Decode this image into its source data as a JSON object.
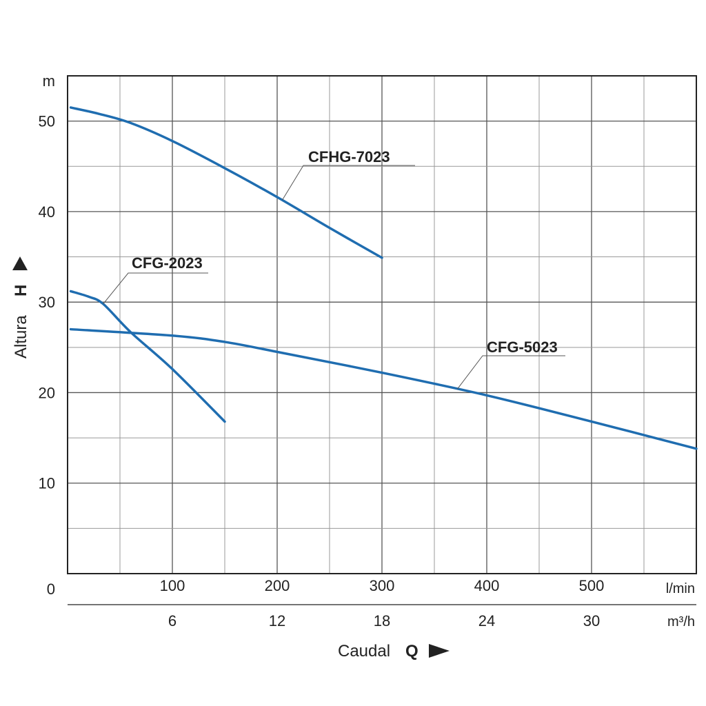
{
  "chart_data": {
    "type": "line",
    "title": "",
    "ylabel": "Altura",
    "ylabel_symbol": "H",
    "y_unit": "m",
    "xlabel": "Caudal",
    "xlabel_symbol": "Q",
    "x_unit_primary": "l/min",
    "x_unit_secondary": "m³/h",
    "origin_label": "0",
    "xlim": [
      0,
      600
    ],
    "ylim": [
      0,
      55
    ],
    "x_ticks_primary": [
      100,
      200,
      300,
      400,
      500
    ],
    "x_ticks_secondary": [
      {
        "label": "6",
        "x": 100
      },
      {
        "label": "12",
        "x": 200
      },
      {
        "label": "18",
        "x": 300
      },
      {
        "label": "24",
        "x": 400
      },
      {
        "label": "30",
        "x": 500
      }
    ],
    "y_ticks": [
      10,
      20,
      30,
      40,
      50
    ],
    "grid": true,
    "line_color": "#1f6db0",
    "series": [
      {
        "name": "CFHG-7023",
        "points": [
          [
            3,
            51.5
          ],
          [
            30,
            50.8
          ],
          [
            60,
            49.8
          ],
          [
            100,
            47.8
          ],
          [
            150,
            44.8
          ],
          [
            200,
            41.6
          ],
          [
            250,
            38.2
          ],
          [
            300,
            34.9
          ]
        ],
        "callout_at": [
          205,
          41.3
        ]
      },
      {
        "name": "CFG-2023",
        "points": [
          [
            3,
            31.2
          ],
          [
            20,
            30.6
          ],
          [
            34,
            29.8
          ],
          [
            60,
            26.7
          ],
          [
            100,
            22.6
          ],
          [
            150,
            16.8
          ]
        ],
        "callout_at": [
          34,
          29.8
        ]
      },
      {
        "name": "CFG-5023",
        "points": [
          [
            3,
            27.0
          ],
          [
            100,
            26.3
          ],
          [
            150,
            25.6
          ],
          [
            200,
            24.5
          ],
          [
            300,
            22.2
          ],
          [
            400,
            19.7
          ],
          [
            500,
            16.8
          ],
          [
            600,
            13.8
          ]
        ],
        "callout_at": [
          372,
          20.4
        ]
      }
    ]
  }
}
